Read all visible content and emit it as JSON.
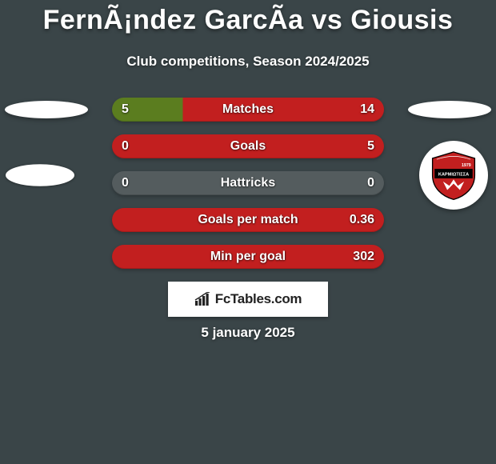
{
  "title": "FernÃ¡ndez GarcÃ­a vs Giousis",
  "subtitle": "Club competitions, Season 2024/2025",
  "date": "5 january 2025",
  "brand": "FcTables.com",
  "colors": {
    "background": "#3a4548",
    "row_left": "#5b7d1f",
    "row_right": "#c21f1f",
    "row_neutral": "#545c5e",
    "text": "#ffffff",
    "brand_bg": "#ffffff",
    "brand_fg": "#222222"
  },
  "rows": [
    {
      "label": "Matches",
      "lval": "5",
      "rval": "14",
      "lpct": 26,
      "has_lval": true
    },
    {
      "label": "Goals",
      "lval": "0",
      "rval": "5",
      "lpct": 0,
      "has_lval": true
    },
    {
      "label": "Hattricks",
      "lval": "0",
      "rval": "0",
      "lpct": 0,
      "has_lval": true,
      "neutral_right": true
    },
    {
      "label": "Goals per match",
      "lval": "",
      "rval": "0.36",
      "lpct": 0,
      "has_lval": false
    },
    {
      "label": "Min per goal",
      "lval": "",
      "rval": "302",
      "lpct": 0,
      "has_lval": false
    }
  ],
  "logo_right": {
    "name": "karmiotissa-fc",
    "bg": "#ffffff",
    "shield_fill": "#c21f1f",
    "stripe": "#000000",
    "text_top": "ΑΘΛΗΤΙΚΟΣ ΠΟΔΟΣΦΑΙΡΙΚΟΣ ΟΜΙΛΟΣ",
    "text_main": "ΚΑΡΜΙΩΤΙΣΣΑ",
    "year": "1979"
  }
}
